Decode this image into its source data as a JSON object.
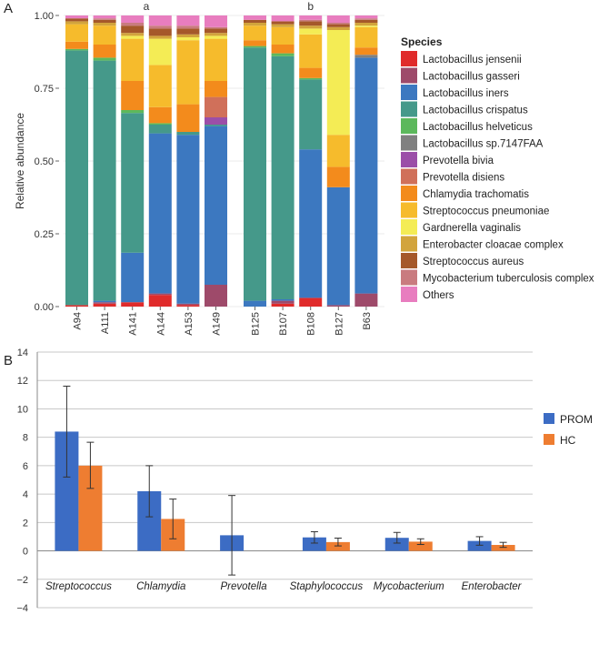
{
  "panels": {
    "a_label": "A",
    "b_label": "B"
  },
  "colors": {
    "species": [
      "#e02b2b",
      "#9e4a6a",
      "#3c78c0",
      "#45998a",
      "#5cb85c",
      "#808080",
      "#9b4ea8",
      "#d0705a",
      "#f38b1c",
      "#f6bb2c",
      "#f4ec55",
      "#d2a43c",
      "#a5582a",
      "#c97b7f",
      "#e87dbf"
    ],
    "prom": "#3c6cc4",
    "hc": "#ee7d31"
  },
  "chart_data": [
    {
      "type": "bar",
      "stacked": true,
      "title": "",
      "ylabel": "Relative abundance",
      "ylim": [
        0,
        1
      ],
      "yticks": [
        "0.00",
        "0.25",
        "0.50",
        "0.75",
        "1.00"
      ],
      "groups": [
        {
          "label": "a",
          "samples": [
            "A94",
            "A111",
            "A141",
            "A144",
            "A153",
            "A149"
          ]
        },
        {
          "label": "b",
          "samples": [
            "B125",
            "B107",
            "B108",
            "B127",
            "B63"
          ]
        }
      ],
      "legend_title": "Species",
      "legend_position": "right",
      "species": [
        "Lactobacillus jensenii",
        "Lactobacillus gasseri",
        "Lactobacillus iners",
        "Lactobacillus crispatus",
        "Lactobacillus helveticus",
        "Lactobacillus sp.7147FAA",
        "Prevotella bivia",
        "Prevotella disiens",
        "Chlamydia trachomatis",
        "Streptococcus pneumoniae",
        "Gardnerella vaginalis",
        "Enterobacter cloacae complex",
        "Streptococcus aureus",
        "Mycobacterium tuberculosis complex",
        "Others"
      ],
      "series_values": {
        "A94": [
          0.005,
          0,
          0,
          0.875,
          0.005,
          0,
          0,
          0,
          0.025,
          0.06,
          0,
          0.01,
          0.01,
          0,
          0.01
        ],
        "A111": [
          0.01,
          0.005,
          0.005,
          0.825,
          0.01,
          0,
          0,
          0,
          0.045,
          0.065,
          0,
          0.01,
          0.01,
          0.005,
          0.01
        ],
        "A141": [
          0.015,
          0,
          0.17,
          0.48,
          0.01,
          0,
          0,
          0,
          0.1,
          0.145,
          0.01,
          0.01,
          0.025,
          0.01,
          0.025
        ],
        "A144": [
          0.04,
          0.005,
          0.55,
          0.03,
          0.005,
          0,
          0,
          0,
          0.055,
          0.145,
          0.09,
          0.01,
          0.025,
          0.01,
          0.035
        ],
        "A153": [
          0.005,
          0.005,
          0.58,
          0.01,
          0,
          0,
          0,
          0,
          0.095,
          0.22,
          0.01,
          0.01,
          0.02,
          0.01,
          0.035
        ],
        "A149": [
          0,
          0.075,
          0.545,
          0.005,
          0,
          0,
          0.025,
          0.07,
          0.055,
          0.145,
          0.01,
          0.01,
          0.015,
          0.005,
          0.04
        ],
        "B125": [
          0,
          0,
          0.02,
          0.87,
          0.005,
          0,
          0,
          0,
          0.02,
          0.05,
          0,
          0.01,
          0.01,
          0,
          0.015
        ],
        "B107": [
          0.01,
          0.01,
          0.005,
          0.835,
          0.01,
          0,
          0,
          0,
          0.03,
          0.06,
          0,
          0.01,
          0.01,
          0,
          0.02
        ],
        "B108": [
          0.03,
          0,
          0.51,
          0.24,
          0.005,
          0,
          0,
          0,
          0.035,
          0.115,
          0.02,
          0.01,
          0.015,
          0.005,
          0.015
        ],
        "B127": [
          0,
          0.005,
          0.405,
          0,
          0,
          0,
          0,
          0,
          0.07,
          0.11,
          0.36,
          0.01,
          0.01,
          0.005,
          0.025
        ],
        "B63": [
          0,
          0.045,
          0.81,
          0,
          0,
          0.01,
          0,
          0,
          0.025,
          0.07,
          0.005,
          0.01,
          0.01,
          0.005,
          0.01
        ]
      }
    },
    {
      "type": "bar",
      "stacked": false,
      "title": "",
      "xlabel": "",
      "ylabel": "",
      "ylim": [
        -4,
        14
      ],
      "yticks": [
        "−4",
        "−2",
        "0",
        "2",
        "4",
        "6",
        "8",
        "10",
        "12",
        "14"
      ],
      "categories": [
        "Streptococcus",
        "Chlamydia",
        "Prevotella",
        "Staphylococcus",
        "Mycobacterium",
        "Enterobacter"
      ],
      "legend_position": "right",
      "series": [
        {
          "name": "PROM",
          "values": [
            8.4,
            4.2,
            1.1,
            0.95,
            0.92,
            0.7
          ],
          "err_low": [
            5.2,
            2.4,
            -1.7,
            0.55,
            0.55,
            0.4
          ],
          "err_high": [
            11.6,
            6.0,
            3.9,
            1.35,
            1.3,
            1.0
          ]
        },
        {
          "name": "HC",
          "values": [
            6.0,
            2.25,
            0,
            0.62,
            0.65,
            0.42
          ],
          "err_low": [
            4.4,
            0.85,
            null,
            0.35,
            0.45,
            0.25
          ],
          "err_high": [
            7.65,
            3.65,
            null,
            0.9,
            0.85,
            0.6
          ]
        }
      ]
    }
  ]
}
